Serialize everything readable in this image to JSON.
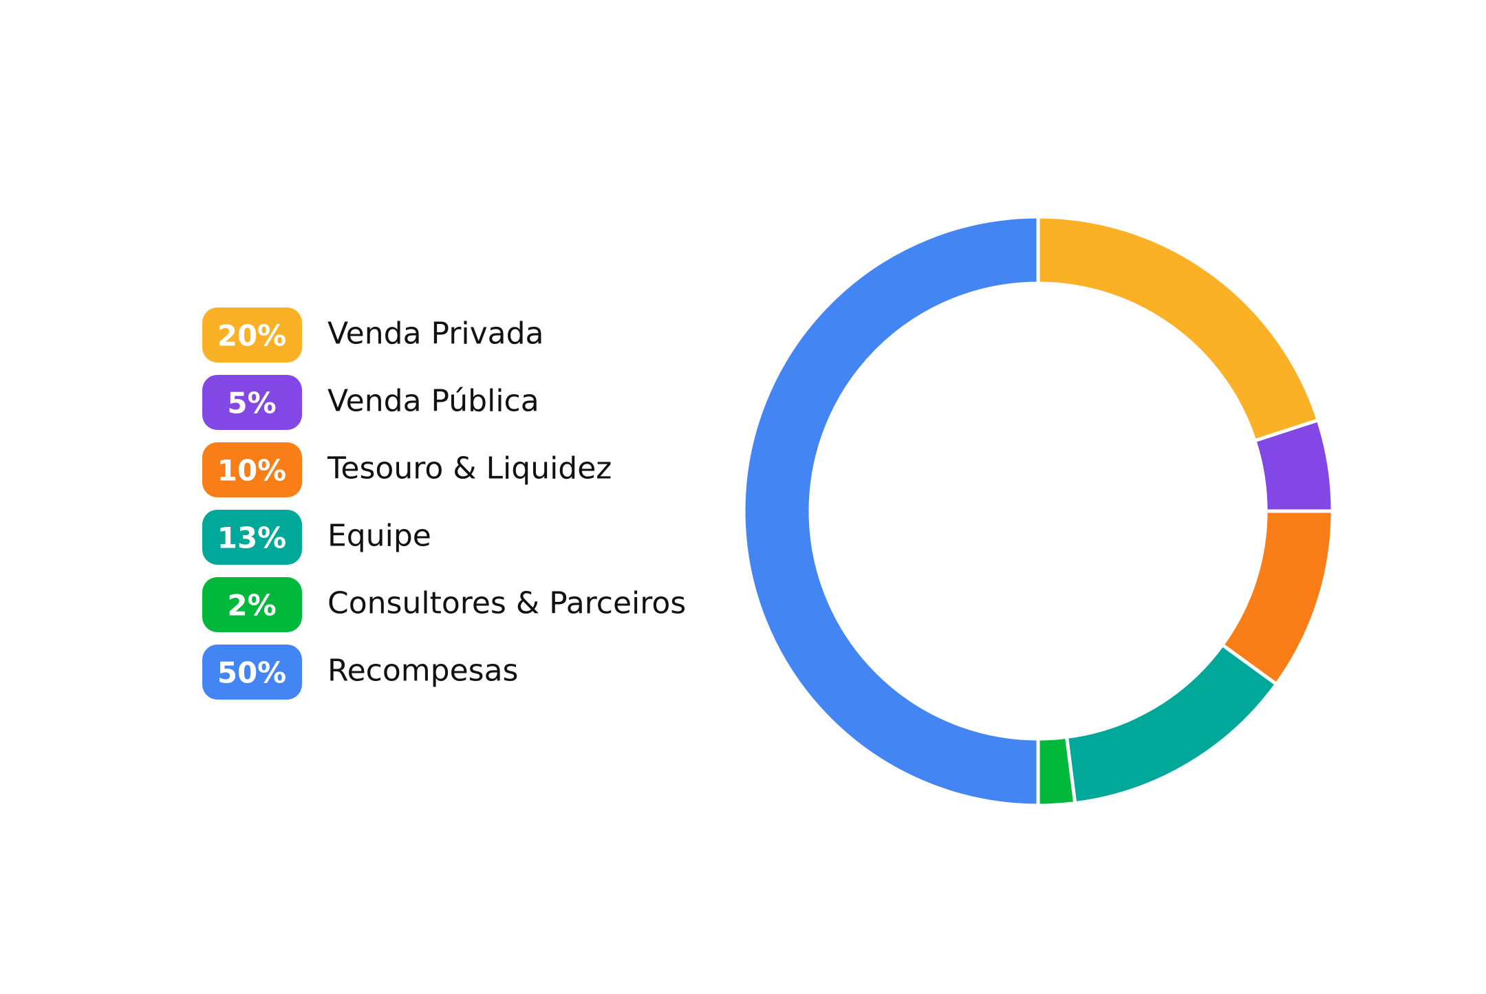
{
  "chart_data": {
    "type": "pie",
    "donut": true,
    "categories": [
      "Venda Privada",
      "Venda Pública",
      "Tesouro & Liquidez",
      "Equipe",
      "Consultores & Parceiros",
      "Recompesas"
    ],
    "values": [
      20,
      5,
      10,
      13,
      2,
      50
    ],
    "value_labels": [
      "20%",
      "5%",
      "10%",
      "13%",
      "2%",
      "50%"
    ],
    "colors": [
      "#fbb125",
      "#8247e5",
      "#fa7e17",
      "#00a89a",
      "#02b83a",
      "#4485f4"
    ],
    "legend": "left"
  }
}
